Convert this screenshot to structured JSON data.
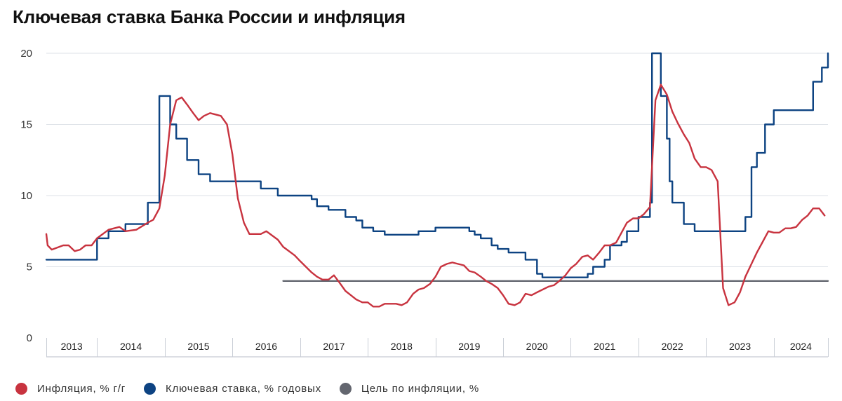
{
  "title": "Ключевая ставка Банка России и инфляция",
  "chart_data": {
    "type": "line",
    "title": "Ключевая ставка Банка России и инфляция",
    "x_range": [
      2013.25,
      2024.8
    ],
    "ylim": [
      0,
      20
    ],
    "yticks": [
      0,
      5,
      10,
      15,
      20
    ],
    "year_labels": [
      "2013",
      "2014",
      "2015",
      "2016",
      "2017",
      "2018",
      "2019",
      "2020",
      "2021",
      "2022",
      "2023",
      "2024"
    ],
    "grid": true,
    "legend_position": "bottom-left",
    "series": [
      {
        "name": "Инфляция, % г/г",
        "color": "#c8333f",
        "kind": "line",
        "points": [
          [
            2013.25,
            7.3
          ],
          [
            2013.27,
            6.5
          ],
          [
            2013.33,
            6.2
          ],
          [
            2013.5,
            6.5
          ],
          [
            2013.58,
            6.5
          ],
          [
            2013.67,
            6.1
          ],
          [
            2013.75,
            6.2
          ],
          [
            2013.83,
            6.5
          ],
          [
            2013.92,
            6.5
          ],
          [
            2014.0,
            7.0
          ],
          [
            2014.17,
            7.6
          ],
          [
            2014.33,
            7.8
          ],
          [
            2014.42,
            7.5
          ],
          [
            2014.58,
            7.6
          ],
          [
            2014.75,
            8.1
          ],
          [
            2014.83,
            8.3
          ],
          [
            2014.92,
            9.1
          ],
          [
            2015.0,
            11.4
          ],
          [
            2015.08,
            15.0
          ],
          [
            2015.17,
            16.7
          ],
          [
            2015.25,
            16.9
          ],
          [
            2015.33,
            16.4
          ],
          [
            2015.42,
            15.8
          ],
          [
            2015.5,
            15.3
          ],
          [
            2015.58,
            15.6
          ],
          [
            2015.67,
            15.8
          ],
          [
            2015.83,
            15.6
          ],
          [
            2015.92,
            15.0
          ],
          [
            2016.0,
            12.9
          ],
          [
            2016.08,
            9.8
          ],
          [
            2016.17,
            8.1
          ],
          [
            2016.25,
            7.3
          ],
          [
            2016.42,
            7.3
          ],
          [
            2016.5,
            7.5
          ],
          [
            2016.67,
            6.9
          ],
          [
            2016.75,
            6.4
          ],
          [
            2016.92,
            5.8
          ],
          [
            2017.0,
            5.4
          ],
          [
            2017.17,
            4.6
          ],
          [
            2017.25,
            4.3
          ],
          [
            2017.33,
            4.1
          ],
          [
            2017.42,
            4.1
          ],
          [
            2017.5,
            4.4
          ],
          [
            2017.58,
            3.9
          ],
          [
            2017.67,
            3.3
          ],
          [
            2017.75,
            3.0
          ],
          [
            2017.83,
            2.7
          ],
          [
            2017.92,
            2.5
          ],
          [
            2018.0,
            2.5
          ],
          [
            2018.08,
            2.2
          ],
          [
            2018.17,
            2.2
          ],
          [
            2018.25,
            2.4
          ],
          [
            2018.42,
            2.4
          ],
          [
            2018.5,
            2.3
          ],
          [
            2018.58,
            2.5
          ],
          [
            2018.67,
            3.1
          ],
          [
            2018.75,
            3.4
          ],
          [
            2018.83,
            3.5
          ],
          [
            2018.92,
            3.8
          ],
          [
            2019.0,
            4.3
          ],
          [
            2019.08,
            5.0
          ],
          [
            2019.17,
            5.2
          ],
          [
            2019.25,
            5.3
          ],
          [
            2019.33,
            5.2
          ],
          [
            2019.42,
            5.1
          ],
          [
            2019.5,
            4.7
          ],
          [
            2019.58,
            4.6
          ],
          [
            2019.67,
            4.3
          ],
          [
            2019.75,
            4.0
          ],
          [
            2019.83,
            3.8
          ],
          [
            2019.92,
            3.5
          ],
          [
            2020.0,
            3.0
          ],
          [
            2020.08,
            2.4
          ],
          [
            2020.17,
            2.3
          ],
          [
            2020.25,
            2.5
          ],
          [
            2020.33,
            3.1
          ],
          [
            2020.42,
            3.0
          ],
          [
            2020.5,
            3.2
          ],
          [
            2020.67,
            3.6
          ],
          [
            2020.75,
            3.7
          ],
          [
            2020.83,
            4.0
          ],
          [
            2020.92,
            4.4
          ],
          [
            2021.0,
            4.9
          ],
          [
            2021.08,
            5.2
          ],
          [
            2021.17,
            5.7
          ],
          [
            2021.25,
            5.8
          ],
          [
            2021.33,
            5.5
          ],
          [
            2021.42,
            6.0
          ],
          [
            2021.5,
            6.5
          ],
          [
            2021.58,
            6.5
          ],
          [
            2021.67,
            6.7
          ],
          [
            2021.75,
            7.4
          ],
          [
            2021.83,
            8.1
          ],
          [
            2021.92,
            8.4
          ],
          [
            2022.0,
            8.4
          ],
          [
            2022.08,
            8.7
          ],
          [
            2022.17,
            9.2
          ],
          [
            2022.25,
            16.7
          ],
          [
            2022.33,
            17.8
          ],
          [
            2022.42,
            17.1
          ],
          [
            2022.5,
            15.9
          ],
          [
            2022.58,
            15.1
          ],
          [
            2022.67,
            14.3
          ],
          [
            2022.75,
            13.7
          ],
          [
            2022.83,
            12.6
          ],
          [
            2022.92,
            12.0
          ],
          [
            2023.0,
            12.0
          ],
          [
            2023.08,
            11.8
          ],
          [
            2023.17,
            11.0
          ],
          [
            2023.25,
            3.5
          ],
          [
            2023.33,
            2.3
          ],
          [
            2023.42,
            2.5
          ],
          [
            2023.5,
            3.2
          ],
          [
            2023.58,
            4.3
          ],
          [
            2023.67,
            5.2
          ],
          [
            2023.75,
            6.0
          ],
          [
            2023.83,
            6.7
          ],
          [
            2023.92,
            7.5
          ],
          [
            2024.0,
            7.4
          ],
          [
            2024.08,
            7.4
          ],
          [
            2024.17,
            7.7
          ],
          [
            2024.25,
            7.7
          ],
          [
            2024.33,
            7.8
          ],
          [
            2024.42,
            8.3
          ],
          [
            2024.5,
            8.6
          ],
          [
            2024.58,
            9.1
          ],
          [
            2024.67,
            9.1
          ],
          [
            2024.75,
            8.6
          ]
        ]
      },
      {
        "name": "Ключевая ставка, % годовых",
        "color": "#0d4382",
        "kind": "step",
        "points": [
          [
            2013.25,
            5.5
          ],
          [
            2014.0,
            7.0
          ],
          [
            2014.17,
            7.5
          ],
          [
            2014.42,
            8.0
          ],
          [
            2014.75,
            9.5
          ],
          [
            2014.92,
            17.0
          ],
          [
            2015.08,
            15.0
          ],
          [
            2015.17,
            14.0
          ],
          [
            2015.33,
            12.5
          ],
          [
            2015.5,
            11.5
          ],
          [
            2015.67,
            11.0
          ],
          [
            2016.42,
            10.5
          ],
          [
            2016.67,
            10.0
          ],
          [
            2017.17,
            9.75
          ],
          [
            2017.25,
            9.25
          ],
          [
            2017.42,
            9.0
          ],
          [
            2017.67,
            8.5
          ],
          [
            2017.83,
            8.25
          ],
          [
            2017.92,
            7.75
          ],
          [
            2018.08,
            7.5
          ],
          [
            2018.25,
            7.25
          ],
          [
            2018.75,
            7.5
          ],
          [
            2019.0,
            7.75
          ],
          [
            2019.5,
            7.5
          ],
          [
            2019.58,
            7.25
          ],
          [
            2019.67,
            7.0
          ],
          [
            2019.83,
            6.5
          ],
          [
            2019.92,
            6.25
          ],
          [
            2020.08,
            6.0
          ],
          [
            2020.33,
            5.5
          ],
          [
            2020.5,
            4.5
          ],
          [
            2020.58,
            4.25
          ],
          [
            2021.25,
            4.5
          ],
          [
            2021.33,
            5.0
          ],
          [
            2021.5,
            5.5
          ],
          [
            2021.58,
            6.5
          ],
          [
            2021.75,
            6.75
          ],
          [
            2021.83,
            7.5
          ],
          [
            2022.0,
            8.5
          ],
          [
            2022.17,
            9.5
          ],
          [
            2022.2,
            20.0
          ],
          [
            2022.33,
            17.0
          ],
          [
            2022.42,
            14.0
          ],
          [
            2022.46,
            11.0
          ],
          [
            2022.5,
            9.5
          ],
          [
            2022.67,
            8.0
          ],
          [
            2022.83,
            7.5
          ],
          [
            2023.58,
            8.5
          ],
          [
            2023.67,
            12.0
          ],
          [
            2023.75,
            13.0
          ],
          [
            2023.87,
            15.0
          ],
          [
            2024.0,
            16.0
          ],
          [
            2024.58,
            18.0
          ],
          [
            2024.71,
            19.0
          ],
          [
            2024.8,
            20.0
          ]
        ]
      },
      {
        "name": "Цель по инфляции, %",
        "color": "#63666f",
        "kind": "line",
        "points": [
          [
            2016.75,
            4.0
          ],
          [
            2024.8,
            4.0
          ]
        ]
      }
    ]
  }
}
